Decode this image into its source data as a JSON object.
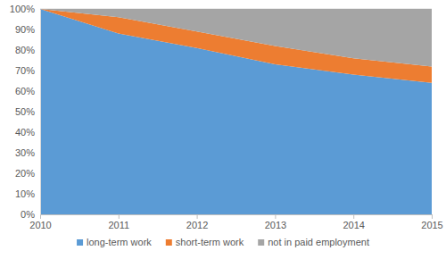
{
  "chart_data": {
    "type": "area",
    "stacked": true,
    "grid": true,
    "legend": "bottom",
    "x": [
      2010,
      2011,
      2012,
      2013,
      2014,
      2015
    ],
    "xlim": [
      2010,
      2015
    ],
    "xticks": [
      2010,
      2011,
      2012,
      2013,
      2014,
      2015
    ],
    "ylim": [
      0,
      100
    ],
    "yticks": [
      {
        "value": 0,
        "label": "0%"
      },
      {
        "value": 10,
        "label": "10%"
      },
      {
        "value": 20,
        "label": "20%"
      },
      {
        "value": 30,
        "label": "30%"
      },
      {
        "value": 40,
        "label": "40%"
      },
      {
        "value": 50,
        "label": "50%"
      },
      {
        "value": 60,
        "label": "60%"
      },
      {
        "value": 70,
        "label": "70%"
      },
      {
        "value": 80,
        "label": "80%"
      },
      {
        "value": 90,
        "label": "90%"
      },
      {
        "value": 100,
        "label": "100%"
      }
    ],
    "series": [
      {
        "name": "long-term work",
        "color": "#5b9bd5",
        "values": [
          100,
          88,
          81,
          73,
          68,
          64
        ]
      },
      {
        "name": "short-term work",
        "color": "#ed7d31",
        "values": [
          0,
          8,
          8,
          9,
          8,
          8
        ]
      },
      {
        "name": "not in paid employment",
        "color": "#a5a5a5",
        "values": [
          0,
          4,
          11,
          18,
          24,
          28
        ]
      }
    ]
  }
}
